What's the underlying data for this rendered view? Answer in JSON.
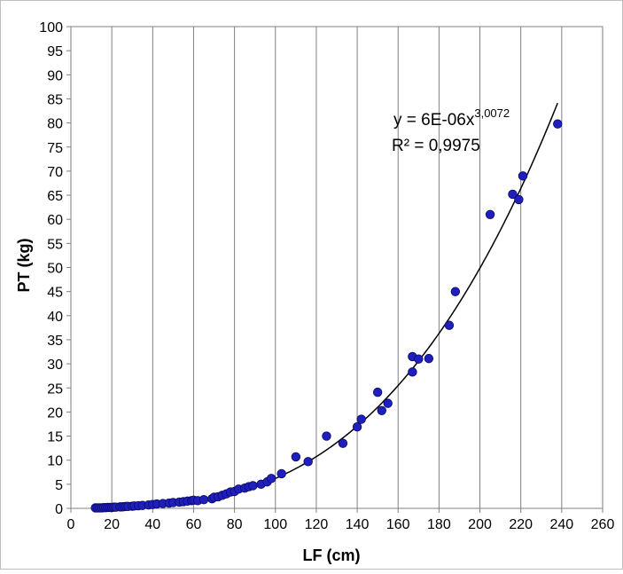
{
  "chart_data": {
    "type": "scatter",
    "title": "",
    "xlabel": "LF (cm)",
    "ylabel": "PT (kg)",
    "xlim": [
      0,
      260
    ],
    "ylim": [
      0,
      100
    ],
    "x_ticks": [
      0,
      20,
      40,
      60,
      80,
      100,
      120,
      140,
      160,
      180,
      200,
      220,
      240,
      260
    ],
    "y_ticks": [
      0,
      5,
      10,
      15,
      20,
      25,
      30,
      35,
      40,
      45,
      50,
      55,
      60,
      65,
      70,
      75,
      80,
      85,
      90,
      95,
      100
    ],
    "grid": "vertical lines only",
    "legend": "none",
    "marker_color": "#1f1fbf",
    "trendline": {
      "type": "power",
      "coefficient": 6e-06,
      "exponent": 3.0072,
      "x_range": [
        12,
        238
      ],
      "equation_base": "y = 6E-06x",
      "equation_exponent": "3,0072",
      "r_squared": "R² = 0,9975"
    },
    "series": [
      {
        "points": [
          [
            12,
            0.1
          ],
          [
            13,
            0.1
          ],
          [
            14,
            0.1
          ],
          [
            15,
            0.1
          ],
          [
            16,
            0.15
          ],
          [
            17,
            0.15
          ],
          [
            18,
            0.2
          ],
          [
            19,
            0.2
          ],
          [
            20,
            0.2
          ],
          [
            21,
            0.25
          ],
          [
            22,
            0.25
          ],
          [
            24,
            0.3
          ],
          [
            25,
            0.3
          ],
          [
            26,
            0.35
          ],
          [
            27,
            0.4
          ],
          [
            28,
            0.4
          ],
          [
            30,
            0.45
          ],
          [
            31,
            0.5
          ],
          [
            33,
            0.55
          ],
          [
            35,
            0.6
          ],
          [
            38,
            0.7
          ],
          [
            40,
            0.8
          ],
          [
            42,
            0.9
          ],
          [
            45,
            1.0
          ],
          [
            48,
            1.1
          ],
          [
            50,
            1.2
          ],
          [
            53,
            1.3
          ],
          [
            55,
            1.4
          ],
          [
            57,
            1.5
          ],
          [
            59,
            1.6
          ],
          [
            60,
            1.7
          ],
          [
            62,
            1.6
          ],
          [
            65,
            1.8
          ],
          [
            69,
            2.0
          ],
          [
            70,
            2.3
          ],
          [
            72,
            2.4
          ],
          [
            74,
            2.7
          ],
          [
            76,
            3.0
          ],
          [
            78,
            3.4
          ],
          [
            80,
            3.5
          ],
          [
            82,
            4.0
          ],
          [
            85,
            4.2
          ],
          [
            87,
            4.5
          ],
          [
            89,
            4.7
          ],
          [
            93,
            5.0
          ],
          [
            96,
            5.5
          ],
          [
            98,
            6.2
          ],
          [
            103,
            7.2
          ],
          [
            110,
            10.7
          ],
          [
            116,
            9.7
          ],
          [
            125,
            15.0
          ],
          [
            133,
            13.5
          ],
          [
            140,
            16.9
          ],
          [
            142,
            18.5
          ],
          [
            150,
            24.1
          ],
          [
            152,
            20.3
          ],
          [
            155,
            21.8
          ],
          [
            167,
            28.3
          ],
          [
            167,
            31.5
          ],
          [
            170,
            31.0
          ],
          [
            175,
            31.1
          ],
          [
            185,
            38.0
          ],
          [
            188,
            45.0
          ],
          [
            205,
            61.0
          ],
          [
            216,
            65.2
          ],
          [
            219,
            64.1
          ],
          [
            221,
            69.0
          ],
          [
            238,
            79.8
          ]
        ]
      }
    ]
  }
}
